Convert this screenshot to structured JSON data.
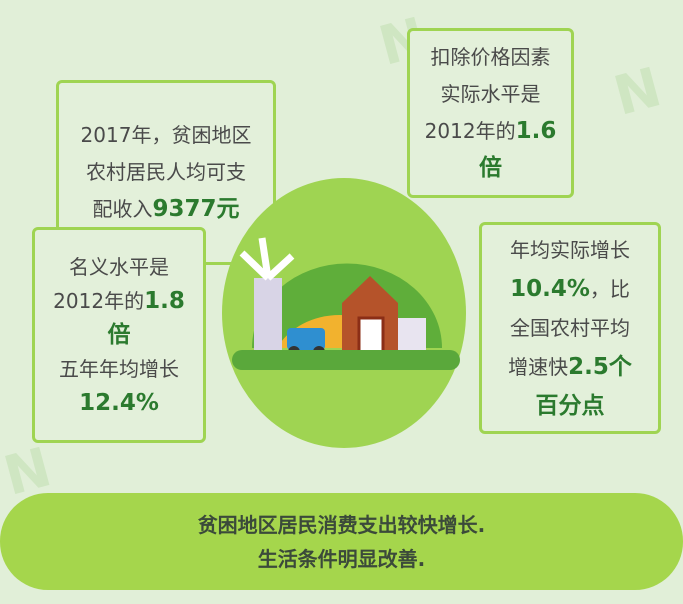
{
  "box_income": {
    "line1": "2017年，贫困地区",
    "line2": "农村居民人均可支",
    "line3_pre": "配收入",
    "line3_hl": "9377元"
  },
  "box_real": {
    "line1": "扣除价格因素",
    "line2": "实际水平是",
    "line3_pre": "2012年的",
    "line3_hl": "1.6",
    "line4_hl": "倍"
  },
  "box_nominal": {
    "line1": "名义水平是",
    "line2_pre": "2012年的",
    "line2_hl": "1.8",
    "line3_hl": "倍",
    "line4": "五年年均增长",
    "line5_hl": "12.4%"
  },
  "box_growth": {
    "line1": "年均实际增长",
    "line2_hl": "10.4%",
    "line2_post": "，比",
    "line3": "全国农村平均",
    "line4_pre": "增速快",
    "line4_hl": "2.5个",
    "line5_hl": "百分点"
  },
  "banner": {
    "line1": "贫困地区居民消费支出较快增长.",
    "line2": "生活条件明显改善."
  },
  "colors": {
    "background": "#e1efd8",
    "accent": "#9fd452",
    "highlight": "#2b7a2e"
  }
}
